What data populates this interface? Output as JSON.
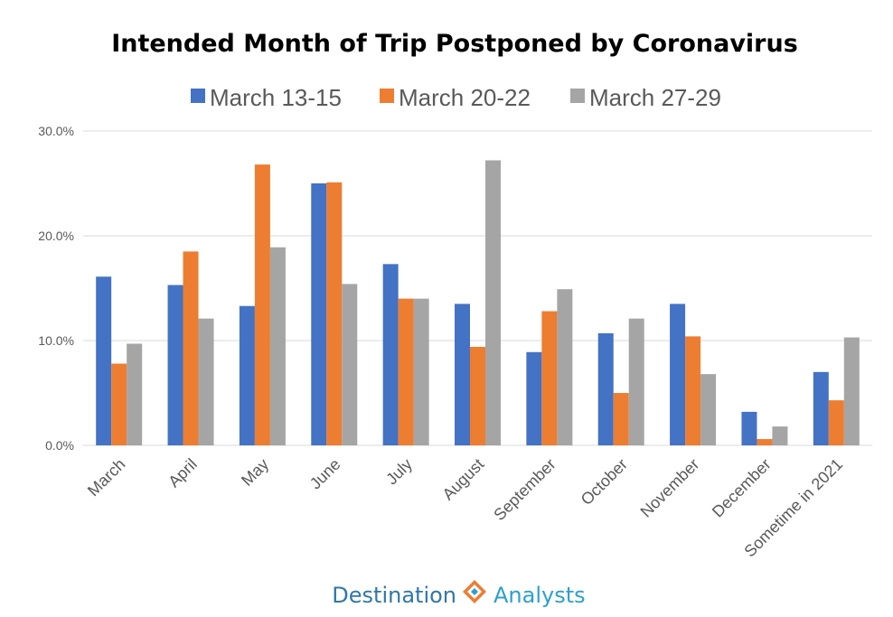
{
  "chart_data": {
    "type": "bar",
    "title": "Intended Month of Trip Postponed by Coronavirus",
    "xlabel": "",
    "ylabel": "",
    "categories": [
      "March",
      "April",
      "May",
      "June",
      "July",
      "August",
      "September",
      "October",
      "November",
      "December",
      "Sometime in 2021"
    ],
    "series": [
      {
        "name": "March 13-15",
        "color": "#4472c4",
        "values": [
          16.1,
          15.3,
          13.3,
          25.0,
          17.3,
          13.5,
          8.9,
          10.7,
          13.5,
          3.2,
          7.0
        ]
      },
      {
        "name": "March 20-22",
        "color": "#ed7d31",
        "values": [
          7.8,
          18.5,
          26.8,
          25.1,
          14.0,
          9.4,
          12.8,
          5.0,
          10.4,
          0.6,
          4.3
        ]
      },
      {
        "name": "March 27-29",
        "color": "#a5a5a5",
        "values": [
          9.7,
          12.1,
          18.9,
          15.4,
          14.0,
          27.2,
          14.9,
          12.1,
          6.8,
          1.8,
          10.3
        ]
      }
    ],
    "ylim": [
      0,
      30
    ],
    "yticks": [
      0,
      10,
      20,
      30
    ],
    "ytick_labels": [
      "0.0%",
      "10.0%",
      "20.0%",
      "30.0%"
    ],
    "grid": true,
    "legend_position": "top"
  },
  "logo": {
    "left_text": "Destination",
    "right_text": "Analysts"
  }
}
